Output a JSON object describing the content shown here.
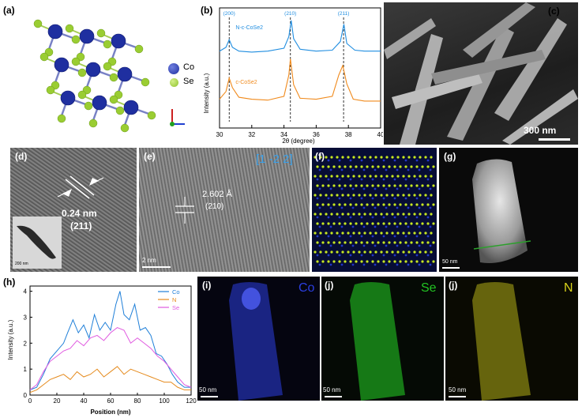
{
  "panels": {
    "a": {
      "label": "(a)",
      "legend": [
        {
          "text": "Co",
          "color": "#1f2fa0"
        },
        {
          "text": "Se",
          "color": "#9acd32"
        }
      ]
    },
    "b": {
      "label": "(b)"
    },
    "c": {
      "label": "(c)",
      "scale": "300 nm"
    },
    "d": {
      "label": "(d)",
      "spacing": "0.24 nm",
      "plane": "(211)",
      "inset_scale": "200 nm"
    },
    "e": {
      "label": "(e)",
      "zone_axis": "[1 -2 2]",
      "spacing": "2.602 Å",
      "plane": "(210)",
      "scale": "2 nm"
    },
    "f": {
      "label": "(f)"
    },
    "g": {
      "label": "(g)",
      "scale": "50 nm"
    },
    "h": {
      "label": "(h)"
    },
    "i": {
      "label": "(i)",
      "element": "Co",
      "scale": "50 nm",
      "color": "#2b3ee0"
    },
    "j1": {
      "label": "(j)",
      "element": "Se",
      "scale": "50 nm",
      "color": "#22c322"
    },
    "j2": {
      "label": "(j)",
      "element": "N",
      "scale": "50 nm",
      "color": "#d8d21a"
    }
  },
  "chart_data": [
    {
      "type": "line",
      "panel": "b",
      "xlabel": "2θ (degree)",
      "ylabel": "Intensity (a.u.)",
      "xlim": [
        30,
        40
      ],
      "xticks": [
        30,
        32,
        34,
        36,
        38,
        40
      ],
      "peak_labels": [
        {
          "x": 30.6,
          "text": "(200)"
        },
        {
          "x": 34.4,
          "text": "(210)"
        },
        {
          "x": 37.7,
          "text": "(211)"
        }
      ],
      "series": [
        {
          "name": "N-c-CoSe2",
          "color": "#1f8de0",
          "x": [
            30,
            30.4,
            30.6,
            30.8,
            31.2,
            32,
            33,
            34,
            34.3,
            34.45,
            34.6,
            35,
            36,
            37,
            37.5,
            37.72,
            37.9,
            38.4,
            39,
            40
          ],
          "y": [
            0.8,
            0.84,
            0.92,
            0.84,
            0.8,
            0.79,
            0.8,
            0.83,
            0.95,
            1.12,
            0.93,
            0.82,
            0.8,
            0.81,
            0.9,
            1.08,
            0.88,
            0.81,
            0.8,
            0.8
          ]
        },
        {
          "name": "c-CoSe2",
          "color": "#f08a1c",
          "x": [
            30,
            30.4,
            30.6,
            30.8,
            31.2,
            32,
            33,
            34,
            34.3,
            34.4,
            34.6,
            35,
            36,
            37,
            37.4,
            37.65,
            37.9,
            38.3,
            39,
            40
          ],
          "y": [
            0.3,
            0.38,
            0.52,
            0.42,
            0.32,
            0.3,
            0.29,
            0.33,
            0.55,
            0.72,
            0.45,
            0.31,
            0.3,
            0.33,
            0.55,
            0.65,
            0.46,
            0.3,
            0.28,
            0.28
          ]
        }
      ]
    },
    {
      "type": "line",
      "panel": "h",
      "xlabel": "Position (nm)",
      "ylabel": "Intensity (a.u.)",
      "xlim": [
        0,
        120
      ],
      "ylim": [
        0,
        4.2
      ],
      "xticks": [
        0,
        20,
        40,
        60,
        80,
        100,
        120
      ],
      "yticks": [
        0,
        1,
        2,
        3,
        4
      ],
      "series": [
        {
          "name": "Co",
          "color": "#1f7fd8",
          "x": [
            0,
            5,
            10,
            15,
            20,
            25,
            28,
            32,
            36,
            40,
            44,
            48,
            52,
            56,
            60,
            64,
            67,
            70,
            74,
            78,
            82,
            86,
            90,
            94,
            98,
            102,
            106,
            110,
            115,
            120
          ],
          "y": [
            0.2,
            0.3,
            0.8,
            1.4,
            1.7,
            2.0,
            2.4,
            2.9,
            2.4,
            2.7,
            2.2,
            3.1,
            2.5,
            2.8,
            2.5,
            3.5,
            4.0,
            3.1,
            2.9,
            3.5,
            2.5,
            2.6,
            2.3,
            1.6,
            1.5,
            1.2,
            0.8,
            0.5,
            0.3,
            0.3
          ]
        },
        {
          "name": "N",
          "color": "#e58a1c",
          "x": [
            0,
            5,
            10,
            15,
            20,
            25,
            30,
            35,
            40,
            45,
            50,
            55,
            60,
            65,
            70,
            75,
            80,
            85,
            90,
            95,
            100,
            105,
            110,
            115,
            120
          ],
          "y": [
            0.1,
            0.2,
            0.4,
            0.6,
            0.7,
            0.8,
            0.6,
            0.9,
            0.7,
            0.8,
            1.0,
            0.7,
            0.9,
            1.1,
            0.8,
            1.0,
            0.9,
            0.8,
            0.7,
            0.6,
            0.5,
            0.5,
            0.3,
            0.2,
            0.2
          ]
        },
        {
          "name": "Se",
          "color": "#e05ae0",
          "x": [
            0,
            5,
            10,
            15,
            20,
            25,
            30,
            35,
            40,
            45,
            50,
            55,
            60,
            65,
            70,
            75,
            80,
            85,
            90,
            95,
            100,
            105,
            110,
            115,
            120
          ],
          "y": [
            0.2,
            0.4,
            0.9,
            1.3,
            1.5,
            1.7,
            1.8,
            2.1,
            1.9,
            2.2,
            2.3,
            2.1,
            2.4,
            2.6,
            2.5,
            2.0,
            2.2,
            2.0,
            1.8,
            1.5,
            1.3,
            1.0,
            0.7,
            0.4,
            0.3
          ]
        }
      ]
    }
  ]
}
